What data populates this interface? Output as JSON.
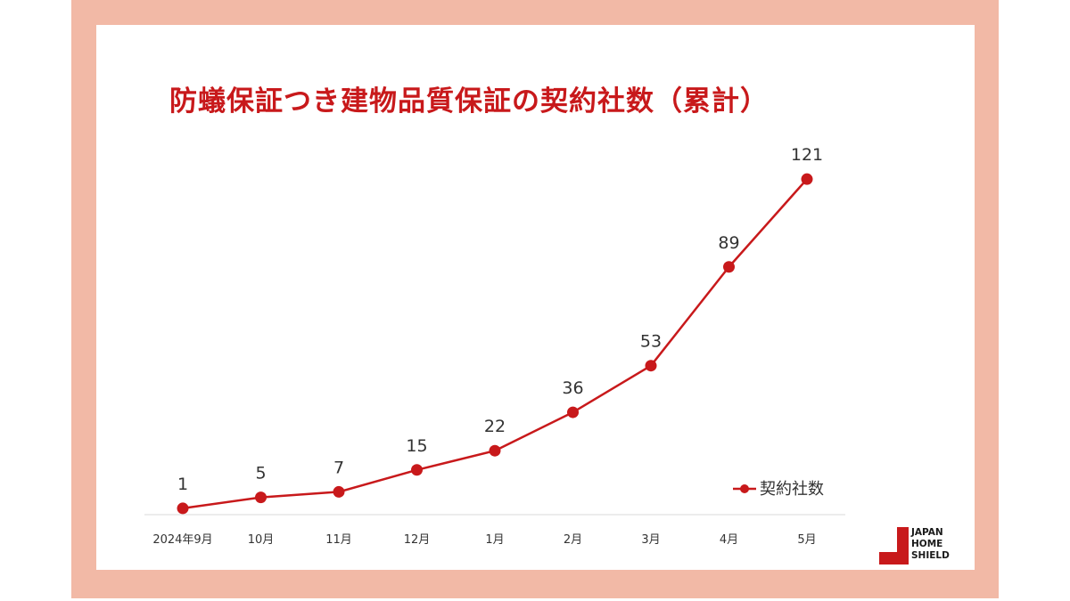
{
  "colors": {
    "frame": "#f2b9a6",
    "accent": "#c8191b",
    "text": "#333333"
  },
  "chart_data": {
    "type": "line",
    "title": "防蟻保証つき建物品質保証の契約社数（累計）",
    "categories": [
      "2024年9月",
      "10月",
      "11月",
      "12月",
      "1月",
      "2月",
      "3月",
      "4月",
      "5月"
    ],
    "series": [
      {
        "name": "契約社数",
        "values": [
          1,
          5,
          7,
          15,
          22,
          36,
          53,
          89,
          121
        ],
        "color": "#c8191b"
      }
    ],
    "data_labels": [
      "1",
      "5",
      "7",
      "15",
      "22",
      "36",
      "53",
      "89",
      "121"
    ],
    "xlabel": "",
    "ylabel": "",
    "ylim": [
      0,
      123
    ],
    "grid": false,
    "legend_position": "bottom-right"
  },
  "logo": {
    "name": "logo-icon",
    "lines": [
      "JAPAN",
      "HOME",
      "SHIELD"
    ]
  }
}
